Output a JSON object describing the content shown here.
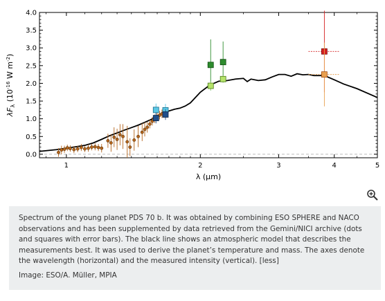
{
  "chart_data": {
    "type": "scatter",
    "xlabel": "λ (μm)",
    "ylabel": "λF_λ (10^-16 W m^-2)",
    "xscale": "log",
    "xlim": [
      0.87,
      5.0
    ],
    "ylim": [
      -0.1,
      4.0
    ],
    "x_ticks": [
      1,
      2,
      3,
      4,
      5
    ],
    "y_ticks": [
      0.0,
      0.5,
      1.0,
      1.5,
      2.0,
      2.5,
      3.0,
      3.5,
      4.0
    ],
    "x_tick_labels": [
      "1",
      "2",
      "3",
      "4",
      "5"
    ],
    "y_tick_labels": [
      "0.0",
      "0.5",
      "1.0",
      "1.5",
      "2.0",
      "2.5",
      "3.0",
      "3.5",
      "4.0"
    ],
    "baseline_y": 0.0,
    "grid": false,
    "model": {
      "color": "#000000",
      "x": [
        0.87,
        0.95,
        1.0,
        1.05,
        1.1,
        1.15,
        1.2,
        1.25,
        1.3,
        1.35,
        1.4,
        1.45,
        1.5,
        1.55,
        1.6,
        1.65,
        1.7,
        1.75,
        1.8,
        1.85,
        1.9,
        1.95,
        2.0,
        2.1,
        2.2,
        2.3,
        2.4,
        2.5,
        2.55,
        2.6,
        2.7,
        2.8,
        2.9,
        3.0,
        3.1,
        3.2,
        3.3,
        3.4,
        3.5,
        3.6,
        3.8,
        4.0,
        4.2,
        4.5,
        5.0
      ],
      "y": [
        0.08,
        0.13,
        0.17,
        0.21,
        0.25,
        0.32,
        0.42,
        0.52,
        0.6,
        0.68,
        0.75,
        0.82,
        0.9,
        0.98,
        1.08,
        1.18,
        1.22,
        1.27,
        1.3,
        1.36,
        1.45,
        1.6,
        1.75,
        1.95,
        2.06,
        2.08,
        2.12,
        2.14,
        2.05,
        2.12,
        2.08,
        2.1,
        2.18,
        2.25,
        2.25,
        2.2,
        2.27,
        2.24,
        2.25,
        2.22,
        2.22,
        2.1,
        1.98,
        1.85,
        1.6
      ]
    },
    "series": [
      {
        "marker": "circle-small",
        "color": "#b5651d",
        "edge": "#5a3308",
        "points": [
          {
            "x": 0.96,
            "y": 0.05,
            "err": 0.12
          },
          {
            "x": 0.975,
            "y": 0.12,
            "err": 0.12
          },
          {
            "x": 0.99,
            "y": 0.14,
            "err": 0.1
          },
          {
            "x": 1.005,
            "y": 0.18,
            "err": 0.09
          },
          {
            "x": 1.02,
            "y": 0.16,
            "err": 0.09
          },
          {
            "x": 1.04,
            "y": 0.13,
            "err": 0.1
          },
          {
            "x": 1.06,
            "y": 0.15,
            "err": 0.09
          },
          {
            "x": 1.08,
            "y": 0.19,
            "err": 0.1
          },
          {
            "x": 1.1,
            "y": 0.15,
            "err": 0.09
          },
          {
            "x": 1.12,
            "y": 0.17,
            "err": 0.1
          },
          {
            "x": 1.14,
            "y": 0.2,
            "err": 0.09
          },
          {
            "x": 1.16,
            "y": 0.21,
            "err": 0.1
          },
          {
            "x": 1.18,
            "y": 0.19,
            "err": 0.1
          },
          {
            "x": 1.2,
            "y": 0.17,
            "err": 0.12
          },
          {
            "x": 1.24,
            "y": 0.38,
            "err": 0.2
          },
          {
            "x": 1.26,
            "y": 0.32,
            "err": 0.25
          },
          {
            "x": 1.28,
            "y": 0.48,
            "err": 0.28
          },
          {
            "x": 1.3,
            "y": 0.42,
            "err": 0.3
          },
          {
            "x": 1.32,
            "y": 0.55,
            "err": 0.3
          },
          {
            "x": 1.34,
            "y": 0.5,
            "err": 0.35
          },
          {
            "x": 1.37,
            "y": 0.35,
            "err": 0.45
          },
          {
            "x": 1.39,
            "y": 0.2,
            "err": 0.25
          },
          {
            "x": 1.42,
            "y": 0.4,
            "err": 0.3
          },
          {
            "x": 1.45,
            "y": 0.5,
            "err": 0.3
          },
          {
            "x": 1.48,
            "y": 0.62,
            "err": 0.25
          },
          {
            "x": 1.5,
            "y": 0.7,
            "err": 0.2
          },
          {
            "x": 1.52,
            "y": 0.76,
            "err": 0.15
          },
          {
            "x": 1.54,
            "y": 0.85,
            "err": 0.12
          },
          {
            "x": 1.56,
            "y": 0.93,
            "err": 0.12
          },
          {
            "x": 1.58,
            "y": 1.0,
            "err": 0.12
          },
          {
            "x": 1.6,
            "y": 1.06,
            "err": 0.12
          },
          {
            "x": 1.62,
            "y": 1.1,
            "err": 0.12
          },
          {
            "x": 1.64,
            "y": 1.14,
            "err": 0.12
          }
        ]
      },
      {
        "marker": "square",
        "color": "#5bc8e6",
        "edge": "#1a6a88",
        "points": [
          {
            "x": 1.59,
            "y": 1.25,
            "err": 0.18,
            "xerr": 0.02
          },
          {
            "x": 1.67,
            "y": 1.24,
            "err": 0.18,
            "xerr": 0.02
          }
        ]
      },
      {
        "marker": "square",
        "color": "#1f4e8a",
        "edge": "#0c2547",
        "points": [
          {
            "x": 1.59,
            "y": 1.02,
            "err": 0.15,
            "xerr": 0.02
          },
          {
            "x": 1.67,
            "y": 1.12,
            "err": 0.15,
            "xerr": 0.02
          }
        ]
      },
      {
        "marker": "square",
        "color": "#2d8c2d",
        "edge": "#0f4a0f",
        "points": [
          {
            "x": 2.11,
            "y": 2.52,
            "err": 0.72,
            "xerr": 0.035
          },
          {
            "x": 2.25,
            "y": 2.6,
            "err": 0.58,
            "xerr": 0.035
          }
        ]
      },
      {
        "marker": "square",
        "color": "#b5e36a",
        "edge": "#4a7a1a",
        "points": [
          {
            "x": 2.11,
            "y": 1.93,
            "err": 0.12,
            "xerr": 0.035
          },
          {
            "x": 2.25,
            "y": 2.12,
            "err": 0.1,
            "xerr": 0.035
          }
        ]
      },
      {
        "marker": "square",
        "color": "#d42020",
        "edge": "#7a0f0f",
        "points": [
          {
            "x": 3.8,
            "y": 2.9,
            "err": 1.15,
            "xerr": 0.3
          }
        ]
      },
      {
        "marker": "square",
        "color": "#e8a050",
        "edge": "#a04a10",
        "points": [
          {
            "x": 3.8,
            "y": 2.25,
            "err": 0.9,
            "xerr": 0.3
          }
        ]
      }
    ]
  },
  "caption": {
    "text": "Spectrum of the young planet PDS 70 b. It was obtained by combining ESO SPHERE and NACO observations and has been supplemented by data retrieved from the Gemini/NICI archive (dots and squares with error bars). The black line shows an atmospheric model that describes the measurements best. It was used to derive the planet’s temperature and mass. The axes denote the wavelength (horizontal) and the measured intensity (vertical).",
    "less_link": "[less]",
    "credit": "Image: ESO/A. Müller, MPIA"
  },
  "icons": {
    "zoom": "zoom-in-icon"
  }
}
